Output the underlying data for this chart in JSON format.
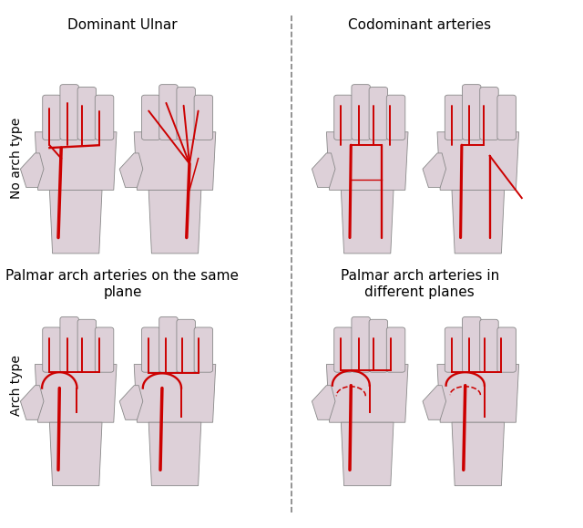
{
  "figsize": [
    6.4,
    5.79
  ],
  "dpi": 100,
  "bg_color": "#ffffff",
  "title_top_left": "Dominant Ulnar",
  "title_top_right": "Codominant arteries",
  "title_bottom_left": "Palmar arch arteries on the same\nplane",
  "title_bottom_right": "Palmar arch arteries in\ndifferent planes",
  "row_label_top": "No arch type",
  "row_label_bottom": "Arch type",
  "hand_color": "#ddd0d8",
  "hand_edge_color": "#888888",
  "vein_color": "#cc0000",
  "font_size_title": 11,
  "font_size_row": 10
}
